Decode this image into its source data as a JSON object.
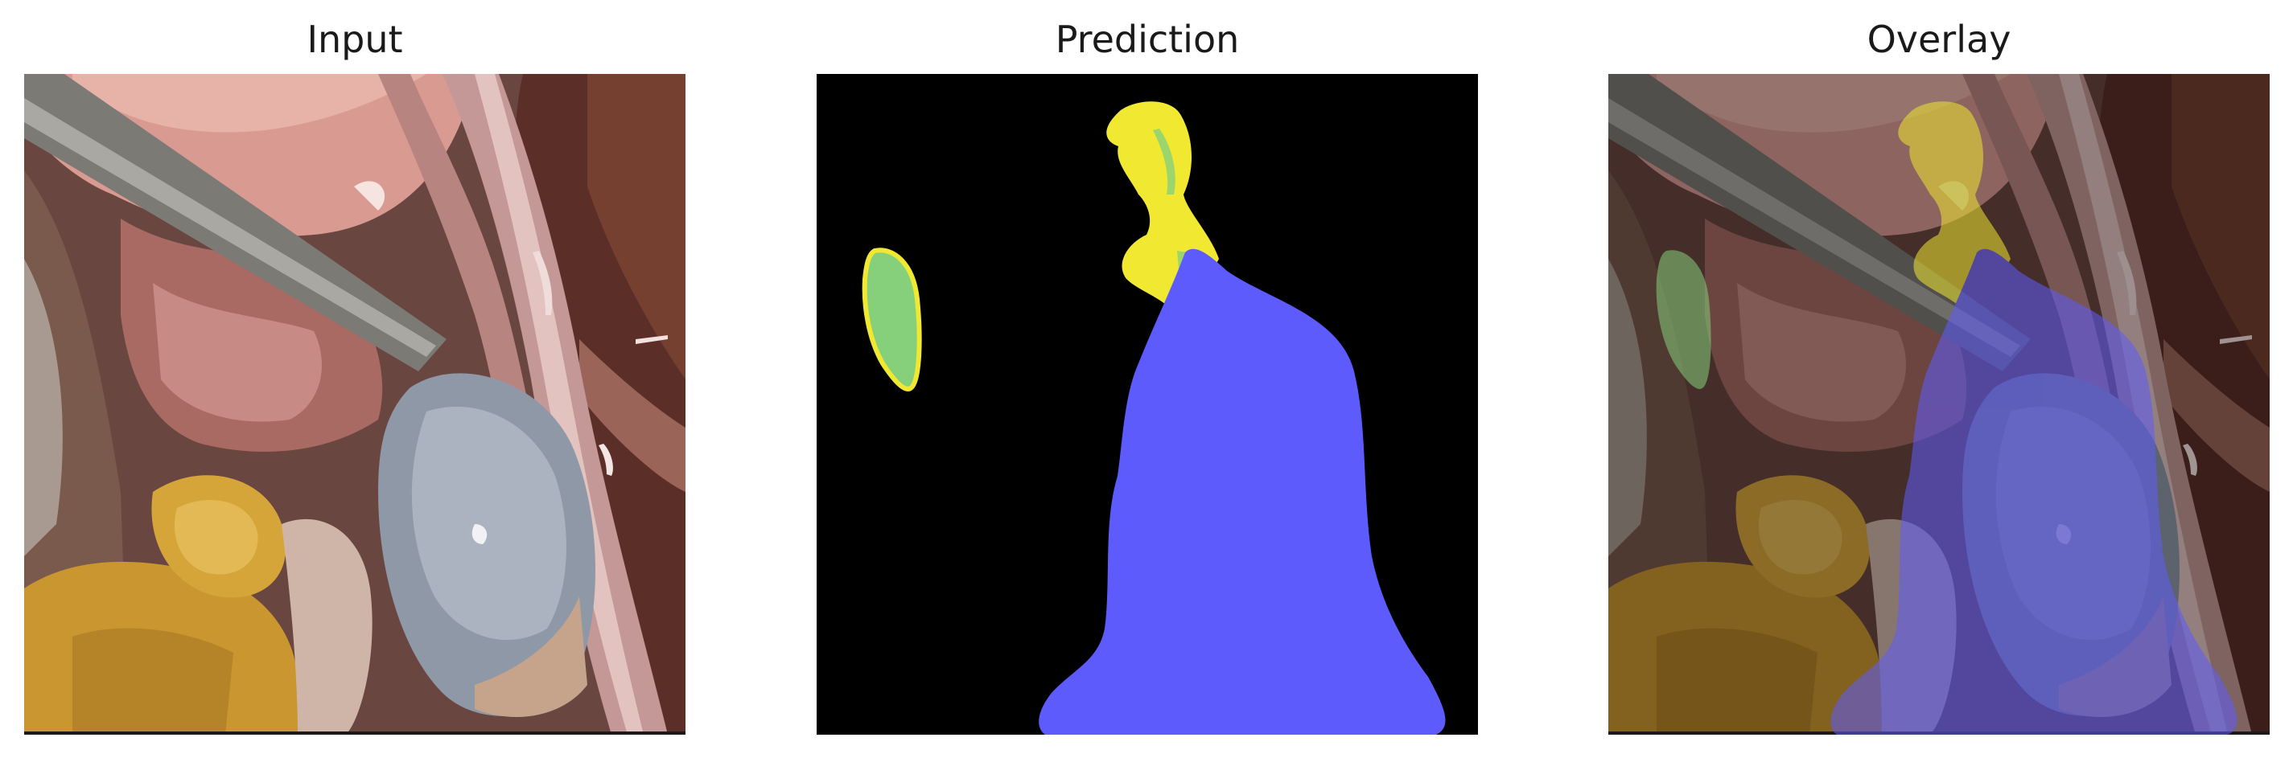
{
  "panels": [
    {
      "title": "Input"
    },
    {
      "title": "Prediction"
    },
    {
      "title": "Overlay"
    }
  ],
  "classes": [
    {
      "color": "#f0e831"
    },
    {
      "color": "#86d07c"
    },
    {
      "color": "#5e5bfd"
    }
  ]
}
